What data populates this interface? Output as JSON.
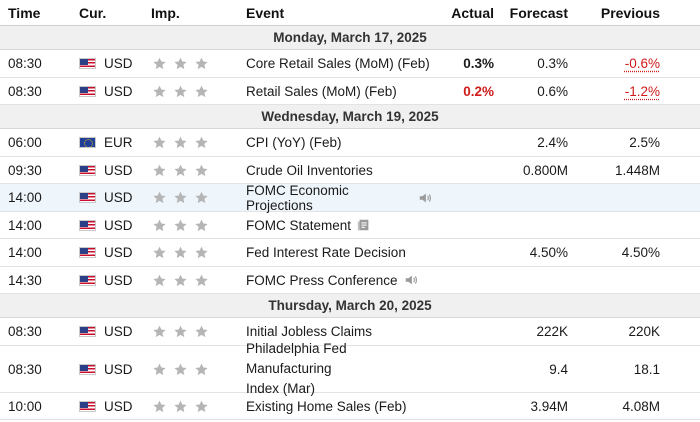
{
  "header": {
    "time": "Time",
    "currency": "Cur.",
    "importance": "Imp.",
    "event": "Event",
    "actual": "Actual",
    "forecast": "Forecast",
    "previous": "Previous"
  },
  "days": [
    {
      "label": "Monday, March 17, 2025",
      "events": [
        {
          "time": "08:30",
          "currency": "USD",
          "flag": "us-flag",
          "stars": 3,
          "event": "Core Retail Sales (MoM) (Feb)",
          "actual": "0.3%",
          "actual_style": "bold",
          "forecast": "0.3%",
          "previous": "-0.6%",
          "previous_style": "red-underlined"
        },
        {
          "time": "08:30",
          "currency": "USD",
          "flag": "us-flag",
          "stars": 3,
          "event": "Retail Sales (MoM) (Feb)",
          "actual": "0.2%",
          "actual_style": "red-bold",
          "forecast": "0.6%",
          "previous": "-1.2%",
          "previous_style": "red-underlined"
        }
      ]
    },
    {
      "label": "Wednesday, March 19, 2025",
      "events": [
        {
          "time": "06:00",
          "currency": "EUR",
          "flag": "eu-flag",
          "stars": 3,
          "event": "CPI (YoY) (Feb)",
          "actual": "",
          "forecast": "2.4%",
          "previous": "2.5%"
        },
        {
          "time": "09:30",
          "currency": "USD",
          "flag": "us-flag",
          "stars": 3,
          "event": "Crude Oil Inventories",
          "actual": "",
          "forecast": "0.800M",
          "previous": "1.448M"
        },
        {
          "time": "14:00",
          "currency": "USD",
          "flag": "us-flag",
          "stars": 3,
          "event": "FOMC Economic Projections",
          "icon": "speaker-icon",
          "highlight": true,
          "actual": "",
          "forecast": "",
          "previous": ""
        },
        {
          "time": "14:00",
          "currency": "USD",
          "flag": "us-flag",
          "stars": 3,
          "event": "FOMC Statement",
          "icon": "document-icon",
          "actual": "",
          "forecast": "",
          "previous": ""
        },
        {
          "time": "14:00",
          "currency": "USD",
          "flag": "us-flag",
          "stars": 3,
          "event": "Fed Interest Rate Decision",
          "actual": "",
          "forecast": "4.50%",
          "previous": "4.50%"
        },
        {
          "time": "14:30",
          "currency": "USD",
          "flag": "us-flag",
          "stars": 3,
          "event": "FOMC Press Conference",
          "icon": "speaker-icon",
          "actual": "",
          "forecast": "",
          "previous": ""
        }
      ]
    },
    {
      "label": "Thursday, March 20, 2025",
      "events": [
        {
          "time": "08:30",
          "currency": "USD",
          "flag": "us-flag",
          "stars": 3,
          "event": "Initial Jobless Claims",
          "actual": "",
          "forecast": "222K",
          "previous": "220K"
        },
        {
          "time": "08:30",
          "currency": "USD",
          "flag": "us-flag",
          "stars": 3,
          "event_lines": [
            "Philadelphia Fed Manufacturing",
            "Index (Mar)"
          ],
          "actual": "",
          "forecast": "9.4",
          "previous": "18.1"
        },
        {
          "time": "10:00",
          "currency": "USD",
          "flag": "us-flag",
          "stars": 3,
          "event": "Existing Home Sales (Feb)",
          "actual": "",
          "forecast": "3.94M",
          "previous": "4.08M"
        }
      ]
    }
  ],
  "colors": {
    "negative": "#d11b1b",
    "star": "#b5b5b5",
    "highlight_row": "#eef5fb",
    "day_row": "#f0f0f0"
  }
}
